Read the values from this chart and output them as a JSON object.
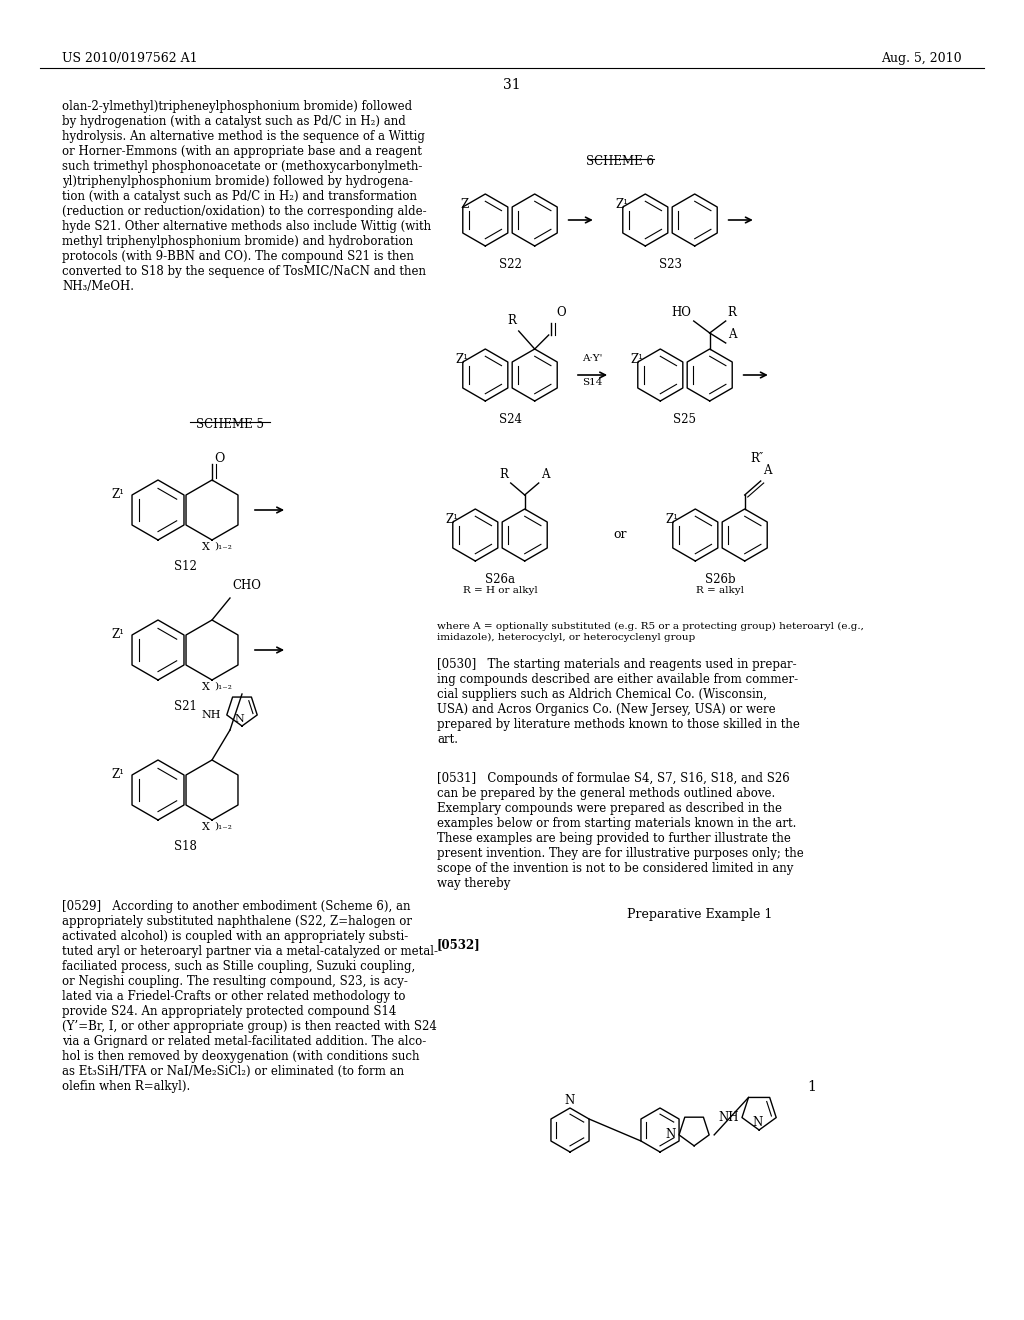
{
  "page_header_left": "US 2010/0197562 A1",
  "page_header_right": "Aug. 5, 2010",
  "page_number": "31",
  "bg_color": "#ffffff",
  "text_color": "#000000",
  "left_text_top": "olan-2-ylmethyl)tripheneylphosphonium bromide) followed\nby hydrogenation (with a catalyst such as Pd/C in H₂) and\nhydrolysis. An alternative method is the sequence of a Wittig\nor Horner-Emmons (with an appropriate base and a reagent\nsuch trimethyl phosphonoacetate or (methoxycarbonylmeth-\nyl)triphenylphosphonium bromide) followed by hydrogena-\ntion (with a catalyst such as Pd/C in H₂) and transformation\n(reduction or reduction/oxidation) to the corresponding alde-\nhyde S21. Other alternative methods also include Wittig (with\nmethyl triphenylphosphonium bromide) and hydroboration\nprotocols (with 9-BBN and CO). The compound S21 is then\nconverted to S18 by the sequence of TosMIC/NaCN and then\nNH₃/MeOH.",
  "scheme5_label": "SCHEME 5",
  "left_text_bottom": "[0529]   According to another embodiment (Scheme 6), an\nappropriately substituted naphthalene (S22, Z=halogen or\nactivated alcohol) is coupled with an appropriately substi-\ntuted aryl or heteroaryl partner via a metal-catalyzed or metal-\nfaciliated process, such as Stille coupling, Suzuki coupling,\nor Negishi coupling. The resulting compound, S23, is acy-\nlated via a Friedel-Crafts or other related methodology to\nprovide S24. An appropriately protected compound S14\n(Y’=Br, I, or other appropriate group) is then reacted with S24\nvia a Grignard or related metal-facilitated addition. The alco-\nhol is then removed by deoxygenation (with conditions such\nas Et₃SiH/TFA or NaI/Me₂SiCl₂) or eliminated (to form an\nolefin when R=alkyl).",
  "right_paragraph_0530": "[0530]   The starting materials and reagents used in prepar-\ning compounds described are either available from commer-\ncial suppliers such as Aldrich Chemical Co. (Wisconsin,\nUSA) and Acros Organics Co. (New Jersey, USA) or were\nprepared by literature methods known to those skilled in the\nart.",
  "right_paragraph_0531": "[0531]   Compounds of formulae S4, S7, S16, S18, and S26\ncan be prepared by the general methods outlined above.\nExemplary compounds were prepared as described in the\nexamples below or from starting materials known in the art.\nThese examples are being provided to further illustrate the\npresent invention. They are for illustrative purposes only; the\nscope of the invention is not to be considered limited in any\nway thereby",
  "prep_example_label": "Preparative Example 1",
  "right_paragraph_0532": "[0532]",
  "scheme6_label": "SCHEME 6",
  "scheme6_note": "where A = optionally substituted (e.g. R5 or a protecting group) heteroaryl (e.g.,\nimidazole), heterocyclyl, or heterocyclenyl group"
}
